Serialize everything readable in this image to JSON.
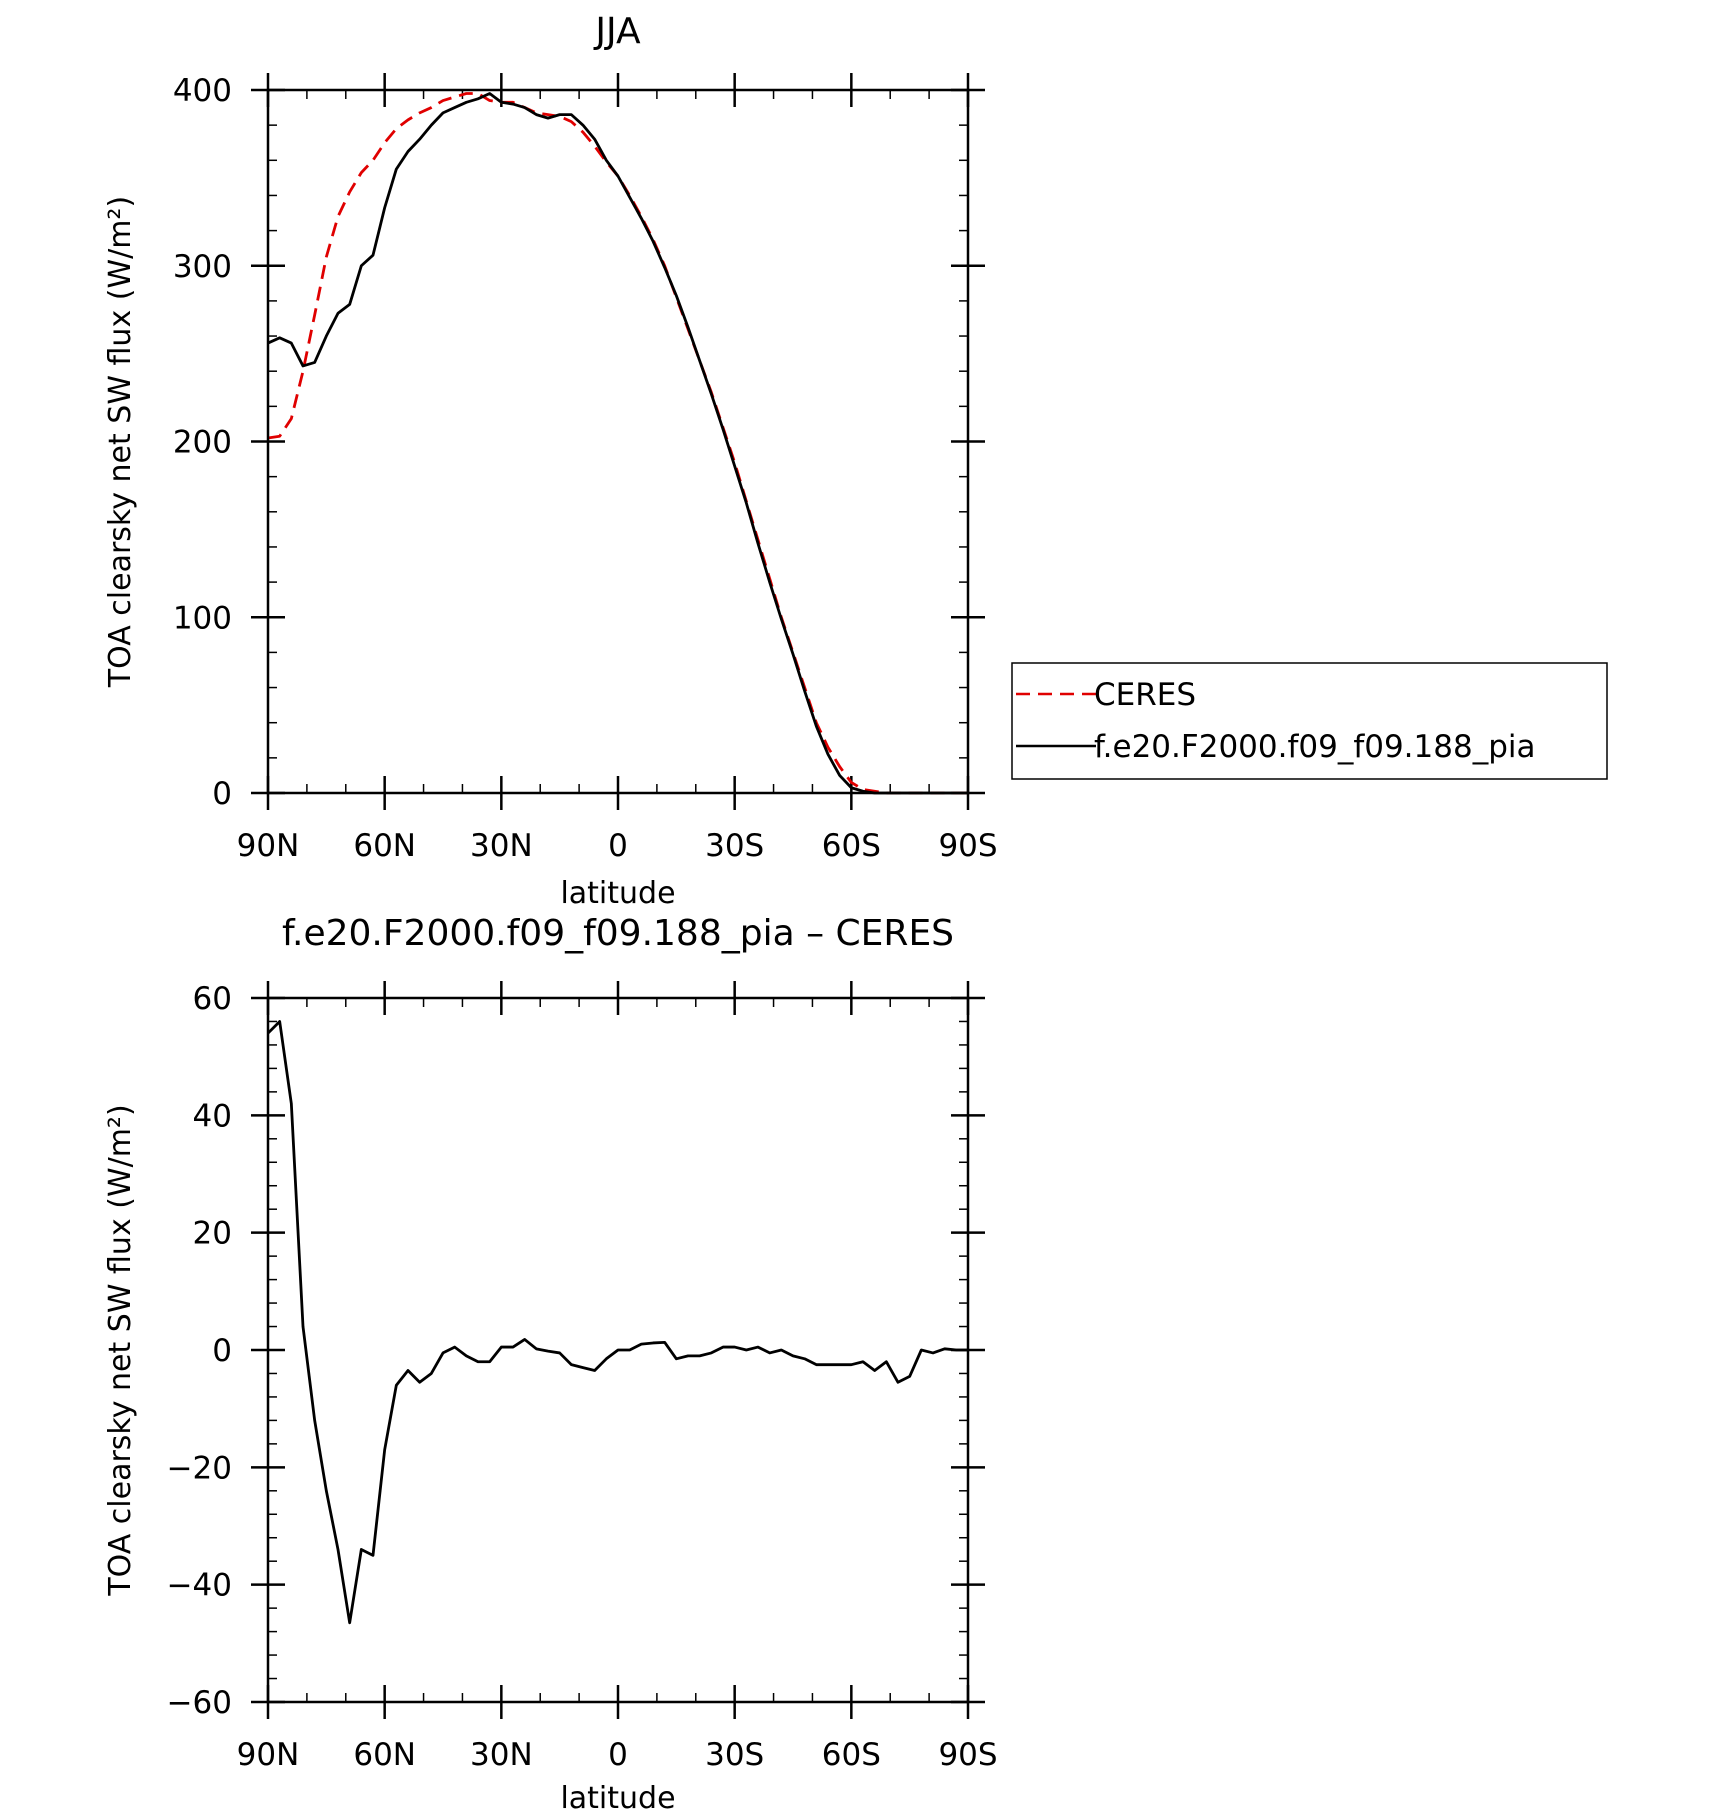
{
  "chart_data": [
    {
      "type": "line",
      "title": "JJA",
      "xlabel": "latitude",
      "ylabel": "TOA clearsky net SW flux (W/m²)",
      "xlim": [
        90,
        -90
      ],
      "ylim": [
        0,
        400
      ],
      "xticks": [
        90,
        60,
        30,
        0,
        -30,
        -60,
        -90
      ],
      "xtick_labels": [
        "90N",
        "60N",
        "30N",
        "0",
        "30S",
        "60S",
        "90S"
      ],
      "yticks": [
        0,
        100,
        200,
        300,
        400
      ],
      "ytick_labels": [
        "0",
        "100",
        "200",
        "300",
        "400"
      ],
      "grid": false,
      "legend_position": "right",
      "series": [
        {
          "name": "CERES",
          "color": "#e00000",
          "dash": "dashed",
          "x": [
            90,
            87,
            84,
            81,
            78,
            75,
            72,
            69,
            66,
            63,
            60,
            57,
            54,
            51,
            48,
            45,
            42,
            39,
            36,
            33,
            30,
            27,
            24,
            21,
            18,
            15,
            12,
            9,
            6,
            3,
            0,
            -3,
            -6,
            -9,
            -12,
            -15,
            -18,
            -21,
            -24,
            -27,
            -30,
            -33,
            -36,
            -39,
            -42,
            -45,
            -48,
            -51,
            -54,
            -57,
            -60,
            -63,
            -66,
            -69,
            -72,
            -75,
            -78,
            -81,
            -84,
            -87,
            -90
          ],
          "y": [
            202,
            203,
            213,
            240,
            272,
            305,
            328,
            342,
            353,
            360,
            370,
            378,
            383,
            387,
            390,
            394,
            396,
            398,
            398,
            394,
            393,
            393,
            390,
            387,
            386,
            385,
            382,
            376,
            368,
            359,
            351,
            340,
            328,
            315,
            300,
            282,
            264,
            246,
            228,
            208,
            188,
            166,
            144,
            122,
            100,
            80,
            60,
            40,
            26,
            15,
            6,
            2,
            1,
            0,
            0,
            0,
            0,
            0,
            0,
            0,
            0
          ]
        },
        {
          "name": "f.e20.F2000.f09_f09.188_pia",
          "color": "#000000",
          "dash": "solid",
          "x": [
            90,
            87,
            84,
            81,
            78,
            75,
            72,
            69,
            66,
            63,
            60,
            57,
            54,
            51,
            48,
            45,
            42,
            39,
            36,
            33,
            30,
            27,
            24,
            21,
            18,
            15,
            12,
            9,
            6,
            3,
            0,
            -3,
            -6,
            -9,
            -12,
            -15,
            -18,
            -21,
            -24,
            -27,
            -30,
            -33,
            -36,
            -39,
            -42,
            -45,
            -48,
            -51,
            -54,
            -57,
            -60,
            -63,
            -66,
            -69,
            -72,
            -75,
            -78,
            -81,
            -84,
            -87,
            -90
          ],
          "y": [
            256,
            259,
            256,
            243,
            245,
            260,
            273,
            278,
            300,
            306,
            333,
            355,
            365,
            372,
            380,
            387,
            390,
            393,
            395,
            398,
            393,
            392,
            390,
            386,
            384,
            386,
            386,
            380,
            372,
            360,
            351,
            339,
            327,
            314,
            299,
            283,
            265,
            246,
            227,
            207,
            186,
            165,
            142,
            120,
            99,
            79,
            58,
            38,
            22,
            10,
            3,
            1,
            0,
            0,
            0,
            0,
            0,
            0,
            0,
            0,
            0
          ]
        }
      ]
    },
    {
      "type": "line",
      "title": "f.e20.F2000.f09_f09.188_pia – CERES",
      "xlabel": "latitude",
      "ylabel": "TOA clearsky net SW flux (W/m²)",
      "xlim": [
        90,
        -90
      ],
      "ylim": [
        -60,
        60
      ],
      "xticks": [
        90,
        60,
        30,
        0,
        -30,
        -60,
        -90
      ],
      "xtick_labels": [
        "90N",
        "60N",
        "30N",
        "0",
        "30S",
        "60S",
        "90S"
      ],
      "yticks": [
        -60,
        -40,
        -20,
        0,
        20,
        40,
        60
      ],
      "ytick_labels": [
        "−60",
        "−40",
        "−20",
        "0",
        "20",
        "40",
        "60"
      ],
      "grid": false,
      "series": [
        {
          "color": "#000000",
          "dash": "solid",
          "x": [
            90,
            87,
            84,
            81,
            78,
            75,
            72,
            69,
            66,
            63,
            60,
            57,
            54,
            51,
            48,
            45,
            42,
            39,
            36,
            33,
            30,
            27,
            24,
            21,
            18,
            15,
            12,
            9,
            6,
            3,
            0,
            -3,
            -6,
            -9,
            -12,
            -15,
            -18,
            -21,
            -24,
            -27,
            -30,
            -33,
            -36,
            -39,
            -42,
            -45,
            -48,
            -51,
            -54,
            -57,
            -60,
            -63,
            -66,
            -69,
            -72,
            -75,
            -78,
            -81,
            -84,
            -87,
            -90
          ],
          "y": [
            54,
            56,
            42,
            4,
            -12,
            -24,
            -34,
            -46.5,
            -34,
            -35,
            -17,
            -6,
            -3.5,
            -5.5,
            -4,
            -0.5,
            0.5,
            -1,
            -2,
            -2,
            0.5,
            0.5,
            1.8,
            0.2,
            -0.2,
            -0.5,
            -2.5,
            -3,
            -3.5,
            -1.5,
            0,
            0,
            1,
            1.2,
            1.3,
            -1.5,
            -1,
            -1,
            -0.5,
            0.5,
            0.5,
            0,
            0.5,
            -0.5,
            0,
            -1,
            -1.5,
            -2.5,
            -2.5,
            -2.5,
            -2.5,
            -2,
            -3.5,
            -2,
            -5.5,
            -4.5,
            0,
            -0.5,
            0.2,
            0,
            0
          ]
        }
      ]
    }
  ]
}
